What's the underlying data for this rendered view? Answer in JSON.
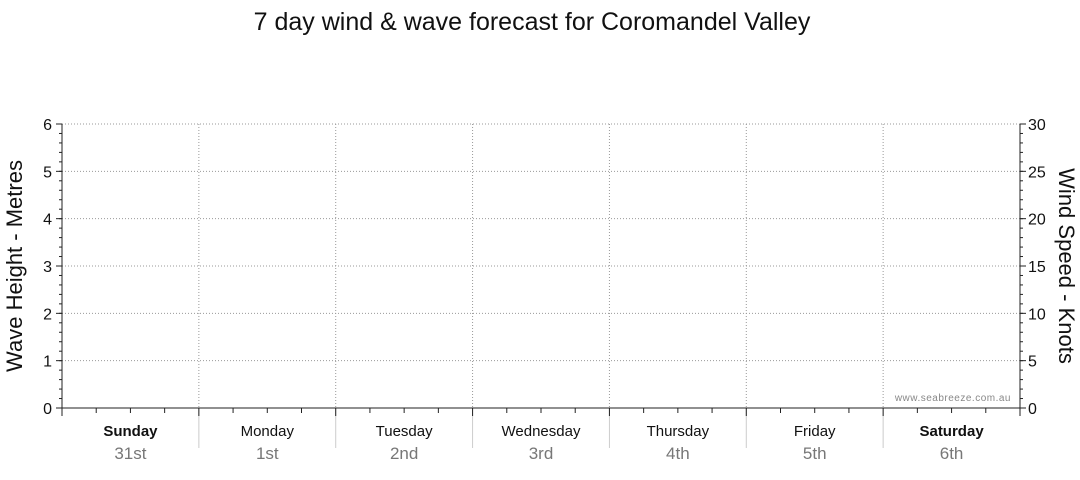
{
  "chart_data": {
    "type": "line",
    "title": "7 day wind & wave forecast for Coromandel Valley",
    "ylabel_left": "Wave Height - Metres",
    "ylabel_right": "Wind Speed - Knots",
    "ylim_left": [
      0,
      6
    ],
    "ylim_right": [
      0,
      30
    ],
    "yticks_left": [
      "0",
      "1",
      "2",
      "3",
      "4",
      "5",
      "6"
    ],
    "yticks_right": [
      "0",
      "5",
      "10",
      "15",
      "20",
      "25",
      "30"
    ],
    "days": [
      {
        "name": "Sunday",
        "date": "31st",
        "bold": true
      },
      {
        "name": "Monday",
        "date": "1st",
        "bold": false
      },
      {
        "name": "Tuesday",
        "date": "2nd",
        "bold": false
      },
      {
        "name": "Wednesday",
        "date": "3rd",
        "bold": false
      },
      {
        "name": "Thursday",
        "date": "4th",
        "bold": false
      },
      {
        "name": "Friday",
        "date": "5th",
        "bold": false
      },
      {
        "name": "Saturday",
        "date": "6th",
        "bold": true
      }
    ],
    "series": [],
    "grid": true,
    "watermark": "www.seabreeze.com.au"
  },
  "colors": {
    "text": "#111111",
    "grid": "#999999",
    "axis": "#222222",
    "date_text": "#777777",
    "watermark": "#888888"
  }
}
